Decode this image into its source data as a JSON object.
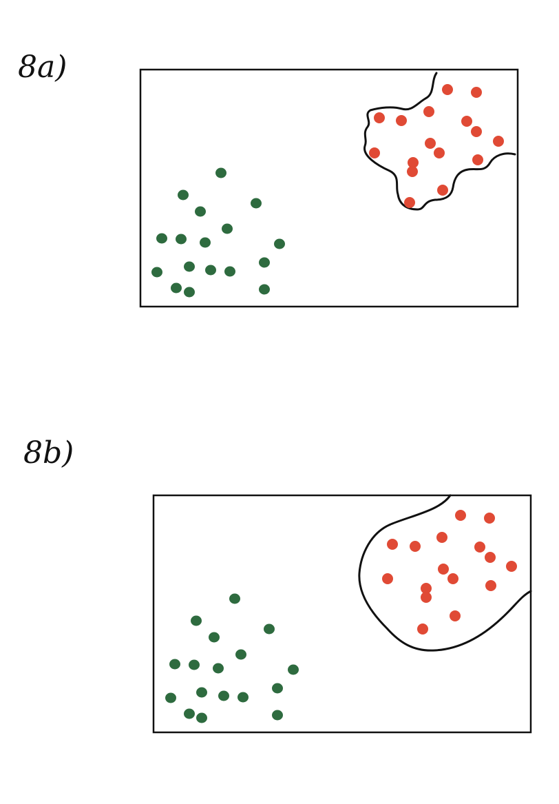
{
  "panels": [
    {
      "id": "a",
      "label": "8a)",
      "boundary_style": "wiggly tight boundary around red cluster",
      "colors": {
        "class_1": "#2e6b3f",
        "class_2": "#e04a35"
      }
    },
    {
      "id": "b",
      "label": "8b)",
      "boundary_style": "smooth rounded boundary around red cluster",
      "colors": {
        "class_1": "#2e6b3f",
        "class_2": "#e04a35"
      }
    }
  ]
}
